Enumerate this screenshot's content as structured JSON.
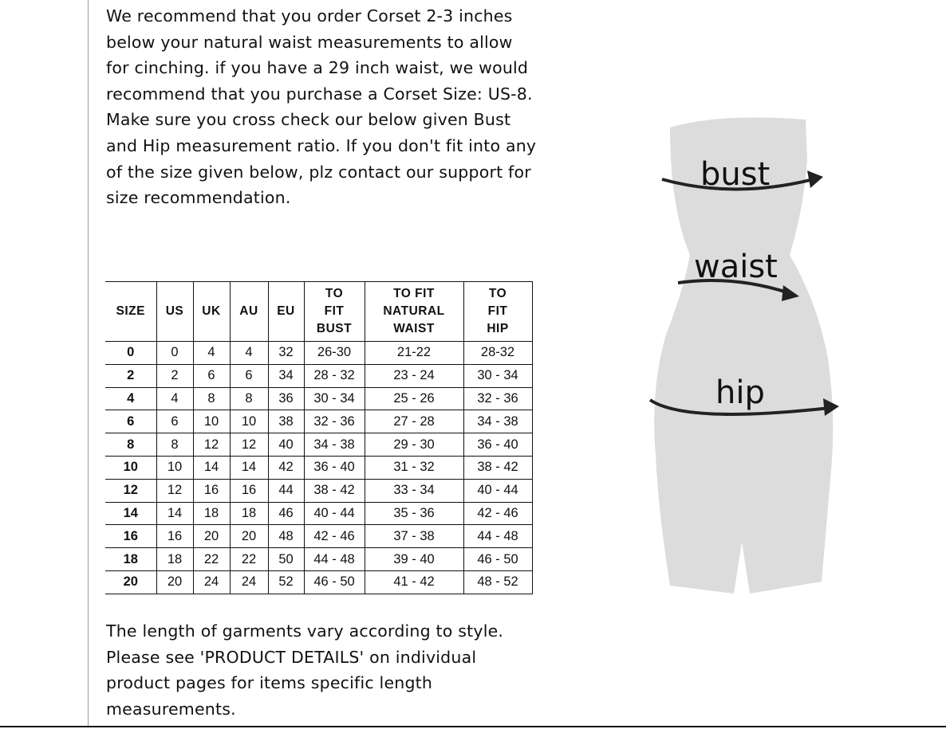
{
  "intro_text": "We recommend that you order Corset 2-3 inches below your natural waist measurements to allow for cinching. if you have a 29 inch waist, we would recommend that you purchase a Corset Size: US-8. Make sure you cross check our below given Bust and Hip measurement ratio. If you don't fit into any of the size given below, plz contact our support for size recommendation.",
  "table": {
    "headers": [
      "SIZE",
      "US",
      "UK",
      "AU",
      "EU",
      "TO FIT BUST",
      "TO FIT NATURAL WAIST",
      "TO FIT HIP"
    ],
    "rows": [
      [
        "0",
        "0",
        "4",
        "4",
        "32",
        "26-30",
        "21-22",
        "28-32"
      ],
      [
        "2",
        "2",
        "6",
        "6",
        "34",
        "28 - 32",
        "23 - 24",
        "30 - 34"
      ],
      [
        "4",
        "4",
        "8",
        "8",
        "36",
        "30 - 34",
        "25 - 26",
        "32 - 36"
      ],
      [
        "6",
        "6",
        "10",
        "10",
        "38",
        "32 - 36",
        "27 - 28",
        "34 - 38"
      ],
      [
        "8",
        "8",
        "12",
        "12",
        "40",
        "34 - 38",
        "29 - 30",
        "36 - 40"
      ],
      [
        "10",
        "10",
        "14",
        "14",
        "42",
        "36 - 40",
        "31 - 32",
        "38 - 42"
      ],
      [
        "12",
        "12",
        "16",
        "16",
        "44",
        "38 - 42",
        "33 - 34",
        "40 - 44"
      ],
      [
        "14",
        "14",
        "18",
        "18",
        "46",
        "40 - 44",
        "35 - 36",
        "42 - 46"
      ],
      [
        "16",
        "16",
        "20",
        "20",
        "48",
        "42 - 46",
        "37 - 38",
        "44 - 48"
      ],
      [
        "18",
        "18",
        "22",
        "22",
        "50",
        "44 - 48",
        "39 - 40",
        "46 - 50"
      ],
      [
        "20",
        "20",
        "24",
        "24",
        "52",
        "46 - 50",
        "41 - 42",
        "48 - 52"
      ]
    ]
  },
  "outro_text": "The length of garments vary according to style. Please see 'PRODUCT DETAILS'  on individual product pages for items specific length measurements.",
  "figure": {
    "bust_label": "bust",
    "waist_label": "waist",
    "hip_label": "hip",
    "body_color": "#dcdcdc"
  }
}
